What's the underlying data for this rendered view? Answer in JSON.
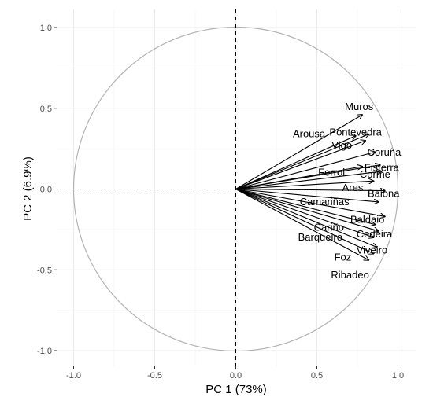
{
  "chart_data": {
    "type": "scatter",
    "subtype": "pca-correlation-circle",
    "xlabel": "PC 1 (73%)",
    "ylabel": "PC 2 (6.9%)",
    "xlim": [
      -1.0,
      1.0
    ],
    "ylim": [
      -1.0,
      1.0
    ],
    "x_ticks": [
      "-1.0",
      "-0.5",
      "0.0",
      "0.5",
      "1.0"
    ],
    "y_ticks": [
      "-1.0",
      "-0.5",
      "0.0",
      "0.5",
      "1.0"
    ],
    "grid": true,
    "unit_circle": true,
    "vectors": [
      {
        "label": "Muros",
        "x": 0.78,
        "y": 0.46
      },
      {
        "label": "Arousa",
        "x": 0.74,
        "y": 0.33
      },
      {
        "label": "Pontevedra",
        "x": 0.82,
        "y": 0.34
      },
      {
        "label": "Vigo",
        "x": 0.8,
        "y": 0.3
      },
      {
        "label": "Coruña",
        "x": 0.86,
        "y": 0.23
      },
      {
        "label": "Ferrol",
        "x": 0.78,
        "y": 0.14
      },
      {
        "label": "Fisterra",
        "x": 0.89,
        "y": 0.15
      },
      {
        "label": "Ares",
        "x": 0.85,
        "y": 0.05
      },
      {
        "label": "Corme",
        "x": 0.9,
        "y": 0.11
      },
      {
        "label": "Baiona",
        "x": 0.92,
        "y": -0.01
      },
      {
        "label": "Camariñas",
        "x": 0.88,
        "y": -0.08
      },
      {
        "label": "Baldaio",
        "x": 0.92,
        "y": -0.17
      },
      {
        "label": "Cariño",
        "x": 0.86,
        "y": -0.22
      },
      {
        "label": "Cedeira",
        "x": 0.88,
        "y": -0.26
      },
      {
        "label": "Barqueiro",
        "x": 0.85,
        "y": -0.3
      },
      {
        "label": "Viveiro",
        "x": 0.87,
        "y": -0.36
      },
      {
        "label": "Foz",
        "x": 0.85,
        "y": -0.4
      },
      {
        "label": "Ribadeo",
        "x": 0.82,
        "y": -0.44
      }
    ]
  }
}
